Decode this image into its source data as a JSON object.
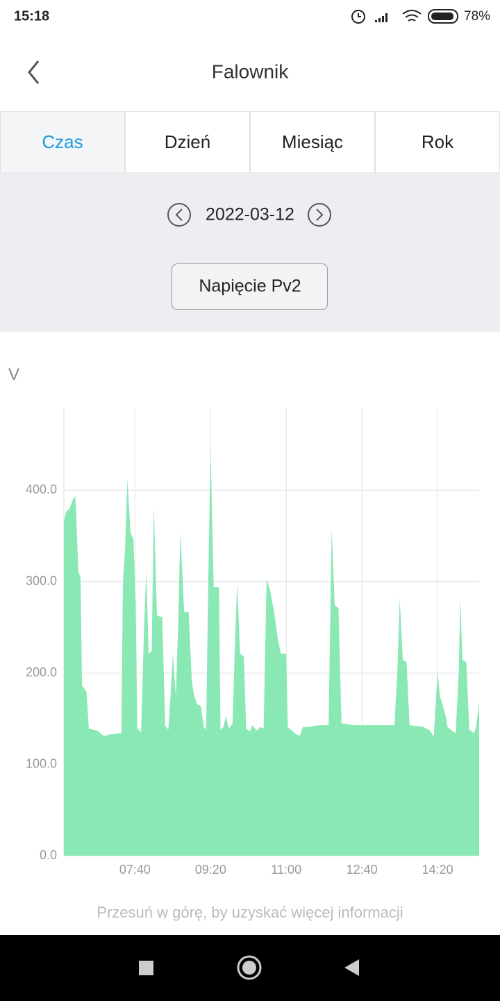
{
  "status_bar": {
    "time": "15:18",
    "battery": "78%"
  },
  "header": {
    "title": "Falownik"
  },
  "tabs": [
    "Czas",
    "Dzień",
    "Miesiąc",
    "Rok"
  ],
  "date": "2022-03-12",
  "series_button": "Napięcie Pv2",
  "chart_data": {
    "type": "area",
    "y_label": "V",
    "color": "#8ae8b4",
    "x": [
      "06:06",
      "06:09",
      "06:13",
      "06:18",
      "06:21",
      "06:22",
      "06:25",
      "06:28",
      "06:30",
      "06:33",
      "06:36",
      "06:39",
      "06:50",
      "06:59",
      "07:08",
      "07:22",
      "07:24",
      "07:27",
      "07:30",
      "07:34",
      "07:38",
      "07:41",
      "07:43",
      "07:48",
      "07:52",
      "07:55",
      "07:58",
      "08:02",
      "08:05",
      "08:09",
      "08:16",
      "08:20",
      "08:24",
      "08:27",
      "08:30",
      "08:34",
      "08:37",
      "08:40",
      "08:45",
      "08:51",
      "08:55",
      "08:58",
      "09:02",
      "09:07",
      "09:11",
      "09:14",
      "09:17",
      "09:20",
      "09:24",
      "09:31",
      "09:33",
      "09:37",
      "09:40",
      "09:44",
      "09:49",
      "09:52",
      "09:55",
      "09:59",
      "10:04",
      "10:07",
      "10:12",
      "10:15",
      "10:21",
      "10:26",
      "10:30",
      "10:34",
      "10:39",
      "10:44",
      "10:49",
      "10:53",
      "11:00",
      "11:02",
      "11:11",
      "11:18",
      "11:22",
      "11:30",
      "11:44",
      "11:56",
      "12:00",
      "12:04",
      "12:09",
      "12:13",
      "12:29",
      "12:48",
      "13:06",
      "13:23",
      "13:27",
      "13:30",
      "13:34",
      "13:39",
      "13:43",
      "14:01",
      "14:10",
      "14:15",
      "14:20",
      "14:23",
      "14:27",
      "14:31",
      "14:33",
      "14:44",
      "14:48",
      "14:50",
      "14:53",
      "14:58",
      "15:02",
      "15:08",
      "15:11",
      "15:15"
    ],
    "values": [
      366,
      377,
      379,
      390,
      394,
      381,
      312,
      304,
      186,
      183,
      179,
      139,
      137,
      131,
      133,
      134,
      299,
      337,
      413,
      354,
      346,
      275,
      139,
      135,
      251,
      313,
      221,
      224,
      382,
      263,
      261,
      142,
      138,
      175,
      221,
      175,
      251,
      354,
      267,
      267,
      192,
      176,
      166,
      164,
      141,
      138,
      305,
      446,
      294,
      294,
      138,
      141,
      153,
      139,
      145,
      228,
      299,
      221,
      218,
      139,
      136,
      143,
      137,
      141,
      139,
      303,
      289,
      266,
      236,
      221,
      221,
      141,
      134,
      131,
      141,
      141,
      143,
      143,
      358,
      274,
      271,
      145,
      143,
      143,
      143,
      143,
      206,
      282,
      214,
      212,
      143,
      141,
      137,
      130,
      202,
      175,
      164,
      152,
      141,
      134,
      202,
      282,
      214,
      212,
      138,
      134,
      141,
      168
    ],
    "xlim": [
      "06:06",
      "15:15"
    ],
    "xticks": [
      "07:40",
      "09:20",
      "11:00",
      "12:40",
      "14:20"
    ],
    "ylim": [
      0,
      490
    ],
    "yticks": [
      {
        "value": 0,
        "label": "0.0"
      },
      {
        "value": 100,
        "label": "100.0"
      },
      {
        "value": 200,
        "label": "200.0"
      },
      {
        "value": 300,
        "label": "300.0"
      },
      {
        "value": 400,
        "label": "400.0"
      }
    ],
    "grid": true
  },
  "hint": "Przesuń w górę, by uzyskać więcej informacji"
}
